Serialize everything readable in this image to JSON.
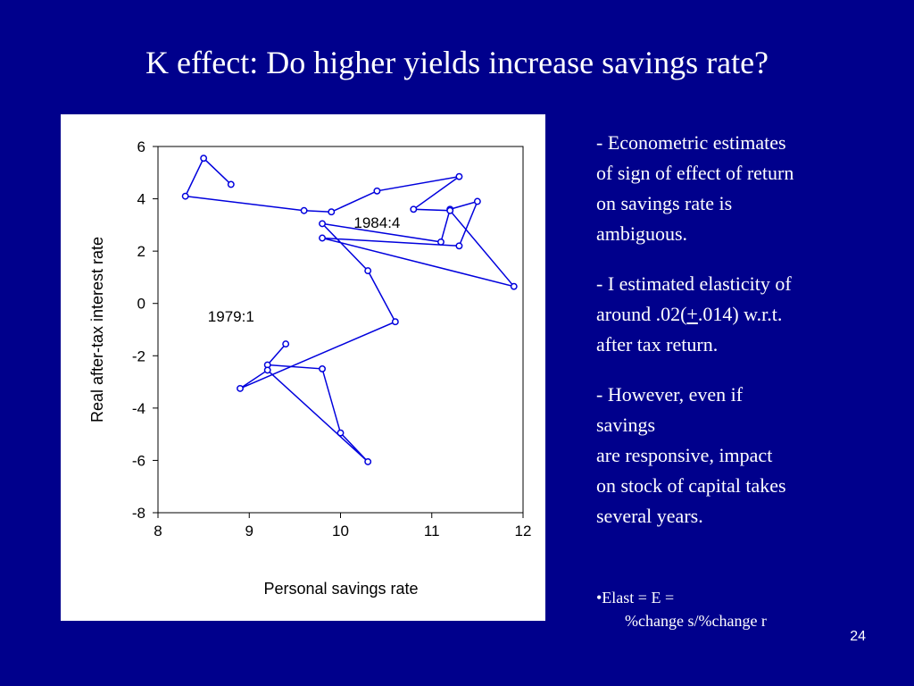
{
  "slide": {
    "title": "K effect: Do higher yields increase savings rate?",
    "bullets": [
      {
        "lines": [
          "- Econometric estimates",
          "of sign of effect of return",
          "on savings rate is",
          "ambiguous."
        ]
      },
      {
        "line1": "- I estimated elasticity of",
        "line2_prefix": "around .02(",
        "line2_underlined": "+",
        "line2_suffix": ".014) w.r.t.",
        "line3": "after tax return."
      },
      {
        "lines": [
          "- However, even if",
          "savings",
          "are responsive, impact",
          "on stock of capital takes",
          "several years."
        ]
      }
    ],
    "elast": {
      "line1": "•Elast = E =",
      "line2": "%change s/%change r"
    },
    "page_number": "24"
  },
  "colors": {
    "background": "#00008c",
    "text": "#ffffff",
    "series": "#0000dd",
    "panel": "#ffffff"
  },
  "chart_data": {
    "type": "line",
    "xlabel": "Personal savings rate",
    "ylabel": "Real after-tax interest rate",
    "xlim": [
      8,
      12
    ],
    "ylim": [
      -8,
      6
    ],
    "x_ticks": [
      "8",
      "9",
      "10",
      "11",
      "12"
    ],
    "y_ticks": [
      "6",
      "4",
      "2",
      "0",
      "-2",
      "-4",
      "-6",
      "-8"
    ],
    "markers": "open-circle",
    "grid": false,
    "series": [
      {
        "points": [
          [
            9.4,
            -1.55
          ],
          [
            9.2,
            -2.35
          ],
          [
            9.8,
            -2.5
          ],
          [
            10.0,
            -4.95
          ],
          [
            10.3,
            -6.05
          ],
          [
            9.2,
            -2.55
          ],
          [
            8.9,
            -3.25
          ],
          [
            10.6,
            -0.7
          ],
          [
            10.3,
            1.25
          ],
          [
            9.8,
            3.05
          ],
          [
            11.1,
            2.35
          ],
          [
            11.2,
            3.6
          ],
          [
            11.5,
            3.9
          ],
          [
            11.3,
            2.2
          ],
          [
            9.8,
            2.5
          ],
          [
            11.9,
            0.65
          ],
          [
            11.2,
            3.55
          ],
          [
            10.8,
            3.6
          ],
          [
            11.3,
            4.85
          ],
          [
            10.4,
            4.3
          ],
          [
            9.9,
            3.5
          ],
          [
            9.6,
            3.55
          ],
          [
            8.3,
            4.1
          ],
          [
            8.5,
            5.55
          ],
          [
            8.8,
            4.55
          ]
        ]
      }
    ],
    "annotations": [
      {
        "text": "1979:1",
        "x": 8.8,
        "y": -0.7
      },
      {
        "text": "1984:4",
        "x": 10.4,
        "y": 2.9
      }
    ]
  }
}
